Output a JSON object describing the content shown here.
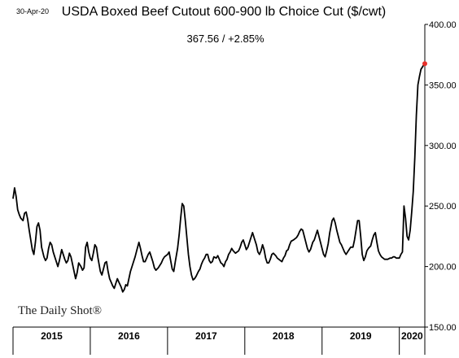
{
  "date_stamp": "30-Apr-20",
  "brand": "The Daily Shot®",
  "colors": {
    "line": "#000000",
    "marker": "#e8302a",
    "grid": "#000000"
  },
  "chart_data": {
    "type": "line",
    "title": "USDA Boxed Beef Cutout 600-900 lb Choice Cut ($/cwt)",
    "subtitle": "367.56  /  +2.85%",
    "y_axis_side": "right",
    "ylim": [
      150,
      400
    ],
    "yticks": [
      150,
      200,
      250,
      300,
      350,
      400
    ],
    "ytick_labels": [
      "150.00",
      "200.00",
      "250.00",
      "300.00",
      "350.00",
      "400.00"
    ],
    "xlim": [
      2015.0,
      2020.33
    ],
    "x_category_labels": [
      "2015",
      "2016",
      "2017",
      "2018",
      "2019",
      "2020"
    ],
    "grid": false,
    "last_value_marker": true,
    "series": [
      {
        "x": [
          2015.0,
          2015.02,
          2015.04,
          2015.06,
          2015.08,
          2015.1,
          2015.13,
          2015.15,
          2015.17,
          2015.19,
          2015.21,
          2015.23,
          2015.25,
          2015.27,
          2015.29,
          2015.31,
          2015.33,
          2015.35,
          2015.37,
          2015.4,
          2015.42,
          2015.44,
          2015.46,
          2015.48,
          2015.5,
          2015.52,
          2015.54,
          2015.56,
          2015.58,
          2015.6,
          2015.63,
          2015.65,
          2015.67,
          2015.69,
          2015.71,
          2015.73,
          2015.75,
          2015.77,
          2015.79,
          2015.81,
          2015.83,
          2015.85,
          2015.88,
          2015.9,
          2015.92,
          2015.94,
          2015.96,
          2015.98,
          2016.0,
          2016.02,
          2016.04,
          2016.06,
          2016.08,
          2016.1,
          2016.13,
          2016.15,
          2016.17,
          2016.19,
          2016.21,
          2016.23,
          2016.25,
          2016.27,
          2016.29,
          2016.31,
          2016.33,
          2016.35,
          2016.37,
          2016.4,
          2016.42,
          2016.44,
          2016.46,
          2016.48,
          2016.5,
          2016.52,
          2016.54,
          2016.56,
          2016.58,
          2016.6,
          2016.63,
          2016.65,
          2016.67,
          2016.69,
          2016.71,
          2016.73,
          2016.75,
          2016.77,
          2016.79,
          2016.81,
          2016.83,
          2016.85,
          2016.88,
          2016.9,
          2016.92,
          2016.94,
          2016.96,
          2016.98,
          2017.0,
          2017.02,
          2017.04,
          2017.06,
          2017.08,
          2017.1,
          2017.13,
          2017.15,
          2017.17,
          2017.19,
          2017.21,
          2017.23,
          2017.25,
          2017.27,
          2017.29,
          2017.31,
          2017.33,
          2017.35,
          2017.37,
          2017.4,
          2017.42,
          2017.44,
          2017.46,
          2017.48,
          2017.5,
          2017.52,
          2017.54,
          2017.56,
          2017.58,
          2017.6,
          2017.63,
          2017.65,
          2017.67,
          2017.69,
          2017.71,
          2017.73,
          2017.75,
          2017.77,
          2017.79,
          2017.81,
          2017.83,
          2017.85,
          2017.88,
          2017.9,
          2017.92,
          2017.94,
          2017.96,
          2017.98,
          2018.0,
          2018.02,
          2018.04,
          2018.06,
          2018.08,
          2018.1,
          2018.13,
          2018.15,
          2018.17,
          2018.19,
          2018.21,
          2018.23,
          2018.25,
          2018.27,
          2018.29,
          2018.31,
          2018.33,
          2018.35,
          2018.37,
          2018.4,
          2018.42,
          2018.44,
          2018.46,
          2018.48,
          2018.5,
          2018.52,
          2018.54,
          2018.56,
          2018.58,
          2018.6,
          2018.63,
          2018.65,
          2018.67,
          2018.69,
          2018.71,
          2018.73,
          2018.75,
          2018.77,
          2018.79,
          2018.81,
          2018.83,
          2018.85,
          2018.88,
          2018.9,
          2018.92,
          2018.94,
          2018.96,
          2018.98,
          2019.0,
          2019.02,
          2019.04,
          2019.06,
          2019.08,
          2019.1,
          2019.13,
          2019.15,
          2019.17,
          2019.19,
          2019.21,
          2019.23,
          2019.25,
          2019.27,
          2019.29,
          2019.31,
          2019.33,
          2019.35,
          2019.37,
          2019.4,
          2019.42,
          2019.44,
          2019.46,
          2019.48,
          2019.5,
          2019.52,
          2019.54,
          2019.56,
          2019.58,
          2019.6,
          2019.63,
          2019.65,
          2019.67,
          2019.69,
          2019.71,
          2019.73,
          2019.75,
          2019.77,
          2019.79,
          2019.81,
          2019.83,
          2019.85,
          2019.88,
          2019.9,
          2019.92,
          2019.94,
          2019.96,
          2019.98,
          2020.0,
          2020.02,
          2020.04,
          2020.06,
          2020.08,
          2020.1,
          2020.12,
          2020.14,
          2020.16,
          2020.18,
          2020.2,
          2020.22,
          2020.24,
          2020.26,
          2020.28,
          2020.3,
          2020.32,
          2020.33
        ],
        "y": [
          256,
          265,
          258,
          247,
          243,
          240,
          238,
          244,
          245,
          239,
          230,
          222,
          214,
          210,
          220,
          233,
          236,
          230,
          216,
          208,
          205,
          207,
          215,
          220,
          218,
          212,
          208,
          204,
          200,
          205,
          214,
          210,
          206,
          203,
          205,
          211,
          208,
          202,
          196,
          190,
          195,
          203,
          200,
          197,
          199,
          216,
          220,
          212,
          207,
          205,
          211,
          218,
          216,
          207,
          196,
          193,
          198,
          203,
          204,
          196,
          190,
          187,
          184,
          182,
          186,
          190,
          187,
          183,
          179,
          181,
          185,
          184,
          190,
          196,
          200,
          204,
          208,
          213,
          220,
          215,
          209,
          204,
          204,
          207,
          210,
          212,
          208,
          204,
          199,
          197,
          199,
          201,
          203,
          206,
          208,
          209,
          210,
          212,
          205,
          198,
          196,
          204,
          215,
          226,
          240,
          252,
          250,
          238,
          224,
          210,
          200,
          193,
          189,
          190,
          192,
          196,
          198,
          202,
          205,
          207,
          210,
          210,
          205,
          203,
          204,
          208,
          207,
          209,
          206,
          203,
          202,
          200,
          204,
          206,
          210,
          212,
          215,
          213,
          211,
          212,
          213,
          216,
          220,
          222,
          218,
          214,
          216,
          220,
          224,
          228,
          222,
          218,
          212,
          210,
          213,
          218,
          214,
          207,
          203,
          203,
          206,
          210,
          211,
          209,
          207,
          206,
          205,
          204,
          207,
          209,
          213,
          214,
          218,
          221,
          222,
          223,
          224,
          226,
          229,
          231,
          230,
          225,
          220,
          215,
          212,
          214,
          220,
          222,
          226,
          230,
          225,
          220,
          215,
          210,
          208,
          213,
          219,
          228,
          238,
          240,
          236,
          230,
          225,
          220,
          218,
          215,
          212,
          210,
          212,
          214,
          216,
          216,
          222,
          230,
          238,
          238,
          225,
          210,
          205,
          208,
          213,
          215,
          217,
          222,
          226,
          228,
          220,
          213,
          210,
          208,
          207,
          206,
          206,
          206,
          207,
          207,
          208,
          208,
          207,
          207,
          207,
          210,
          212,
          250,
          240,
          225,
          222,
          230,
          245,
          262,
          290,
          325,
          350,
          357,
          363,
          365,
          367,
          367.56
        ]
      }
    ]
  }
}
